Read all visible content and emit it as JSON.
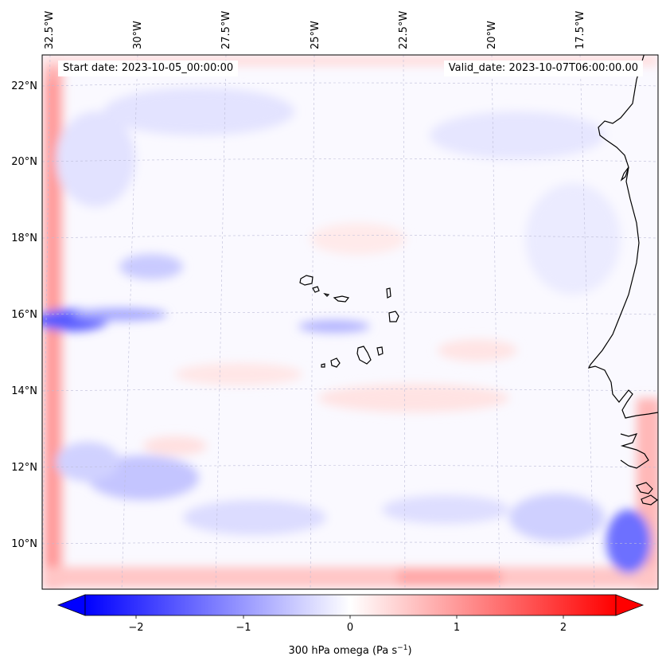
{
  "map": {
    "start_date_label": "Start date: 2023-10-05_00:00:00",
    "valid_date_label": "Valid_date: 2023-10-07T06:00:00.00",
    "lon_labels": [
      "32.5°W",
      "30°W",
      "27.5°W",
      "25°W",
      "22.5°W",
      "20°W",
      "17.5°W"
    ],
    "lat_labels": [
      "22°N",
      "20°N",
      "18°N",
      "16°N",
      "14°N",
      "12°N",
      "10°N"
    ],
    "gridlines": true,
    "colormap": "bwr",
    "coastline_color": "#000000"
  },
  "colorbar": {
    "label": "300 hPa omega (Pa s",
    "label_sup": "−1",
    "label_close": ")",
    "tick_labels": [
      "−2",
      "−1",
      "0",
      "1",
      "2"
    ],
    "range": [
      -2.7,
      2.7
    ],
    "extend": "both",
    "color_min": "#0000ff",
    "color_mid": "#ffffff",
    "color_max": "#ff0000"
  }
}
